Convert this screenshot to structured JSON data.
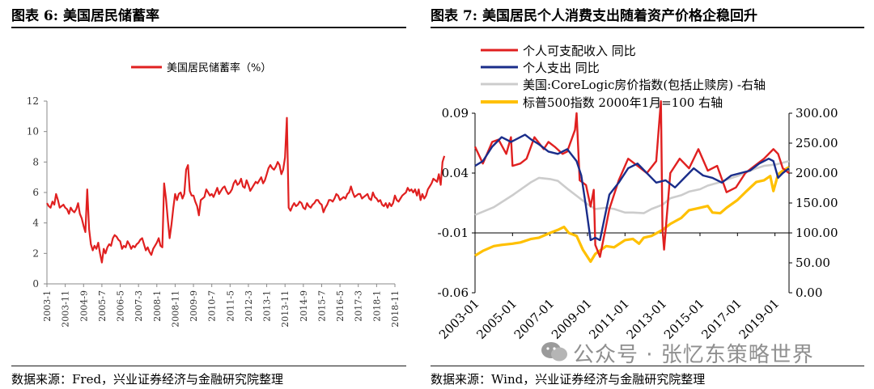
{
  "left_title": "图表 6:  美国居民储蓄率",
  "right_title": "图表 7:  美国居民个人消费支出随着资产价格企稳回升",
  "left_source": "数据来源：Fred，兴业证券经济与金融研究院整理",
  "right_source": "数据来源：Wind，兴业证券经济与金融研究院整理",
  "watermark": "公众号 · 张忆东策略世界",
  "chart_data": [
    {
      "type": "line",
      "title": "",
      "legend": [
        "美国居民储蓄率（%）"
      ],
      "legend_position": "top",
      "xlabel": "",
      "ylabel": "",
      "ylim": [
        0,
        12
      ],
      "yticks": [
        "0",
        "2",
        "4",
        "6",
        "8",
        "10",
        "12"
      ],
      "xticks": [
        "2003-1",
        "2003-11",
        "2004-9",
        "2005-7",
        "2006-5",
        "2007-3",
        "2008-1",
        "2008-11",
        "2009-9",
        "2010-7",
        "2011-5",
        "2012-3",
        "2013-1",
        "2013-11",
        "2014-9",
        "2015-7",
        "2016-5",
        "2017-3",
        "2018-1",
        "2018-11"
      ],
      "grid": false,
      "color": "#e02020",
      "series": [
        {
          "name": "美国居民储蓄率（%）",
          "start": "2003-01",
          "values": [
            5.3,
            5.1,
            5.0,
            5.4,
            5.2,
            5.9,
            5.5,
            5.0,
            5.1,
            5.2,
            5.0,
            4.9,
            4.6,
            5.0,
            4.8,
            4.7,
            4.9,
            5.3,
            4.6,
            4.3,
            3.8,
            3.4,
            6.2,
            3.6,
            2.6,
            2.2,
            2.5,
            2.3,
            2.7,
            2.0,
            1.4,
            2.3,
            2.0,
            2.4,
            2.6,
            2.5,
            3.0,
            3.2,
            3.1,
            2.9,
            2.8,
            2.3,
            2.5,
            2.4,
            2.8,
            2.6,
            2.3,
            2.5,
            2.4,
            2.6,
            2.7,
            2.9,
            3.0,
            2.6,
            2.2,
            2.4,
            2.1,
            1.9,
            2.3,
            2.5,
            2.7,
            3.0,
            2.5,
            2.4,
            6.6,
            5.6,
            4.2,
            3.0,
            3.9,
            5.0,
            5.9,
            5.5,
            5.9,
            6.0,
            5.6,
            5.9,
            7.5,
            7.8,
            6.1,
            5.8,
            5.8,
            5.4,
            5.1,
            4.5,
            5.5,
            5.6,
            5.7,
            6.2,
            6.0,
            5.8,
            5.9,
            5.7,
            6.0,
            6.3,
            5.9,
            6.1,
            6.3,
            6.4,
            6.1,
            5.9,
            6.0,
            6.2,
            6.6,
            6.8,
            6.5,
            6.6,
            6.9,
            6.4,
            6.3,
            6.8,
            6.5,
            6.1,
            6.3,
            6.5,
            6.7,
            6.6,
            6.8,
            7.0,
            6.6,
            6.8,
            7.2,
            7.6,
            7.8,
            7.6,
            7.5,
            7.7,
            8.0,
            7.8,
            7.2,
            7.5,
            8.3,
            10.9,
            5.0,
            4.8,
            5.1,
            5.3,
            5.1,
            5.2,
            5.4,
            5.3,
            5.0,
            4.9,
            5.3,
            5.1,
            5.0,
            5.2,
            5.3,
            5.5,
            5.5,
            5.3,
            5.2,
            4.7,
            5.0,
            5.2,
            5.5,
            5.5,
            5.4,
            5.6,
            5.9,
            5.8,
            5.5,
            5.6,
            5.7,
            5.6,
            5.9,
            6.0,
            6.4,
            6.0,
            5.7,
            5.8,
            5.9,
            5.9,
            5.6,
            5.7,
            5.8,
            5.9,
            5.6,
            5.5,
            6.0,
            5.7,
            5.6,
            5.4,
            5.5,
            5.2,
            5.1,
            5.3,
            5.0,
            5.3,
            5.1,
            5.3,
            5.8,
            5.5,
            5.4,
            5.6,
            5.8,
            5.9,
            6.0,
            6.3,
            6.1,
            6.2,
            6.0,
            6.2,
            5.8,
            6.2,
            5.5,
            5.9,
            5.6,
            5.8,
            6.2,
            6.4,
            6.6,
            6.9,
            6.8,
            6.7,
            7.2,
            6.5,
            8.0,
            8.4
          ]
        }
      ]
    },
    {
      "type": "line",
      "title": "",
      "legend": [
        "个人可支配收入 同比",
        "个人支出 同比",
        "美国:CoreLogic房价指数(包括止赎房) -右轴",
        "标普500指数 2000年1月=100 右轴"
      ],
      "legend_position": "top-left",
      "xlabel": "",
      "ylabel": "",
      "ylim": [
        -0.06,
        0.09
      ],
      "yticks": [
        "-0.06",
        "-0.01",
        "0.04",
        "0.09"
      ],
      "y2lim": [
        0,
        300
      ],
      "y2ticks": [
        "0.00",
        "50.00",
        "100.00",
        "150.00",
        "200.00",
        "250.00",
        "300.00"
      ],
      "xticks": [
        "2003-01",
        "2005-01",
        "2007-01",
        "2009-01",
        "2011-01",
        "2013-01",
        "2015-01",
        "2017-01",
        "2019-01"
      ],
      "grid": false,
      "x_range": [
        "2003-01",
        "2019-10"
      ],
      "series": [
        {
          "name": "个人可支配收入 同比",
          "axis": "left",
          "color": "#e02020",
          "points": [
            [
              "2003-01",
              0.062
            ],
            [
              "2003-06",
              0.048
            ],
            [
              "2003-12",
              0.066
            ],
            [
              "2004-04",
              0.068
            ],
            [
              "2004-09",
              0.056
            ],
            [
              "2004-12",
              0.07
            ],
            [
              "2005-01",
              0.046
            ],
            [
              "2005-06",
              0.048
            ],
            [
              "2005-10",
              0.052
            ],
            [
              "2006-03",
              0.07
            ],
            [
              "2006-09",
              0.06
            ],
            [
              "2006-12",
              0.066
            ],
            [
              "2007-04",
              0.062
            ],
            [
              "2007-09",
              0.056
            ],
            [
              "2007-12",
              0.058
            ],
            [
              "2008-05",
              0.076
            ],
            [
              "2008-06",
              0.09
            ],
            [
              "2008-08",
              0.034
            ],
            [
              "2008-12",
              0.03
            ],
            [
              "2009-03",
              0.012
            ],
            [
              "2009-05",
              0.026
            ],
            [
              "2009-06",
              -0.02
            ],
            [
              "2009-09",
              -0.03
            ],
            [
              "2010-03",
              0.01
            ],
            [
              "2010-09",
              0.034
            ],
            [
              "2011-03",
              0.052
            ],
            [
              "2011-09",
              0.046
            ],
            [
              "2012-03",
              0.04
            ],
            [
              "2012-09",
              0.05
            ],
            [
              "2012-11",
              0.084
            ],
            [
              "2012-12",
              0.1
            ],
            [
              "2013-01",
              -0.006
            ],
            [
              "2013-02",
              -0.024
            ],
            [
              "2013-06",
              0.04
            ],
            [
              "2013-12",
              0.052
            ],
            [
              "2014-06",
              0.044
            ],
            [
              "2014-12",
              0.06
            ],
            [
              "2015-06",
              0.042
            ],
            [
              "2015-12",
              0.046
            ],
            [
              "2016-06",
              0.024
            ],
            [
              "2016-12",
              0.028
            ],
            [
              "2017-06",
              0.04
            ],
            [
              "2017-12",
              0.046
            ],
            [
              "2018-06",
              0.052
            ],
            [
              "2018-12",
              0.06
            ],
            [
              "2019-03",
              0.056
            ],
            [
              "2019-06",
              0.044
            ],
            [
              "2019-10",
              0.04
            ]
          ]
        },
        {
          "name": "个人支出 同比",
          "axis": "left",
          "color": "#1a2d8a",
          "points": [
            [
              "2003-01",
              0.046
            ],
            [
              "2003-06",
              0.05
            ],
            [
              "2003-12",
              0.062
            ],
            [
              "2004-06",
              0.07
            ],
            [
              "2004-12",
              0.066
            ],
            [
              "2005-06",
              0.07
            ],
            [
              "2005-09",
              0.072
            ],
            [
              "2006-01",
              0.068
            ],
            [
              "2006-06",
              0.064
            ],
            [
              "2006-12",
              0.058
            ],
            [
              "2007-06",
              0.056
            ],
            [
              "2007-12",
              0.06
            ],
            [
              "2008-06",
              0.05
            ],
            [
              "2008-09",
              0.038
            ],
            [
              "2008-12",
              0.012
            ],
            [
              "2009-03",
              -0.016
            ],
            [
              "2009-06",
              -0.014
            ],
            [
              "2009-09",
              -0.016
            ],
            [
              "2010-03",
              0.022
            ],
            [
              "2010-09",
              0.032
            ],
            [
              "2011-03",
              0.044
            ],
            [
              "2011-09",
              0.048
            ],
            [
              "2012-03",
              0.04
            ],
            [
              "2012-09",
              0.032
            ],
            [
              "2013-03",
              0.034
            ],
            [
              "2013-09",
              0.028
            ],
            [
              "2014-03",
              0.036
            ],
            [
              "2014-09",
              0.044
            ],
            [
              "2015-03",
              0.038
            ],
            [
              "2015-09",
              0.036
            ],
            [
              "2016-03",
              0.032
            ],
            [
              "2016-09",
              0.038
            ],
            [
              "2017-03",
              0.04
            ],
            [
              "2017-09",
              0.042
            ],
            [
              "2018-03",
              0.048
            ],
            [
              "2018-09",
              0.052
            ],
            [
              "2018-12",
              0.05
            ],
            [
              "2019-03",
              0.036
            ],
            [
              "2019-06",
              0.04
            ],
            [
              "2019-10",
              0.044
            ]
          ]
        },
        {
          "name": "美国:CoreLogic房价指数(包括止赎房) -右轴",
          "axis": "right",
          "color": "#cccccc",
          "points": [
            [
              "2003-01",
              130
            ],
            [
              "2004-01",
              143
            ],
            [
              "2005-01",
              163
            ],
            [
              "2006-01",
              185
            ],
            [
              "2006-06",
              192
            ],
            [
              "2007-01",
              190
            ],
            [
              "2007-06",
              187
            ],
            [
              "2008-01",
              172
            ],
            [
              "2008-06",
              162
            ],
            [
              "2009-01",
              148
            ],
            [
              "2009-06",
              140
            ],
            [
              "2010-01",
              142
            ],
            [
              "2010-06",
              140
            ],
            [
              "2011-01",
              134
            ],
            [
              "2011-06",
              134
            ],
            [
              "2012-01",
              133
            ],
            [
              "2012-06",
              140
            ],
            [
              "2013-01",
              147
            ],
            [
              "2013-06",
              158
            ],
            [
              "2014-01",
              163
            ],
            [
              "2014-06",
              169
            ],
            [
              "2015-01",
              173
            ],
            [
              "2015-06",
              179
            ],
            [
              "2016-01",
              184
            ],
            [
              "2016-06",
              189
            ],
            [
              "2017-01",
              195
            ],
            [
              "2017-06",
              201
            ],
            [
              "2018-01",
              208
            ],
            [
              "2018-06",
              212
            ],
            [
              "2019-01",
              214
            ],
            [
              "2019-10",
              220
            ]
          ]
        },
        {
          "name": "标普500指数 2000年1月=100 右轴",
          "axis": "right",
          "color": "#ffc000",
          "points": [
            [
              "2003-01",
              62
            ],
            [
              "2003-06",
              70
            ],
            [
              "2004-01",
              78
            ],
            [
              "2004-06",
              80
            ],
            [
              "2005-01",
              82
            ],
            [
              "2005-06",
              84
            ],
            [
              "2006-01",
              90
            ],
            [
              "2006-06",
              92
            ],
            [
              "2007-01",
              100
            ],
            [
              "2007-06",
              105
            ],
            [
              "2007-10",
              110
            ],
            [
              "2008-01",
              100
            ],
            [
              "2008-06",
              95
            ],
            [
              "2008-10",
              72
            ],
            [
              "2009-03",
              52
            ],
            [
              "2009-06",
              65
            ],
            [
              "2010-01",
              78
            ],
            [
              "2010-06",
              76
            ],
            [
              "2011-01",
              88
            ],
            [
              "2011-06",
              90
            ],
            [
              "2011-10",
              82
            ],
            [
              "2012-01",
              92
            ],
            [
              "2012-06",
              95
            ],
            [
              "2013-01",
              105
            ],
            [
              "2013-06",
              115
            ],
            [
              "2014-01",
              125
            ],
            [
              "2014-06",
              138
            ],
            [
              "2015-01",
              142
            ],
            [
              "2015-06",
              145
            ],
            [
              "2015-09",
              134
            ],
            [
              "2016-02",
              133
            ],
            [
              "2016-06",
              142
            ],
            [
              "2017-01",
              155
            ],
            [
              "2017-06",
              168
            ],
            [
              "2018-01",
              185
            ],
            [
              "2018-06",
              188
            ],
            [
              "2018-10",
              195
            ],
            [
              "2018-12",
              170
            ],
            [
              "2019-03",
              198
            ],
            [
              "2019-06",
              204
            ],
            [
              "2019-10",
              210
            ]
          ]
        }
      ]
    }
  ]
}
